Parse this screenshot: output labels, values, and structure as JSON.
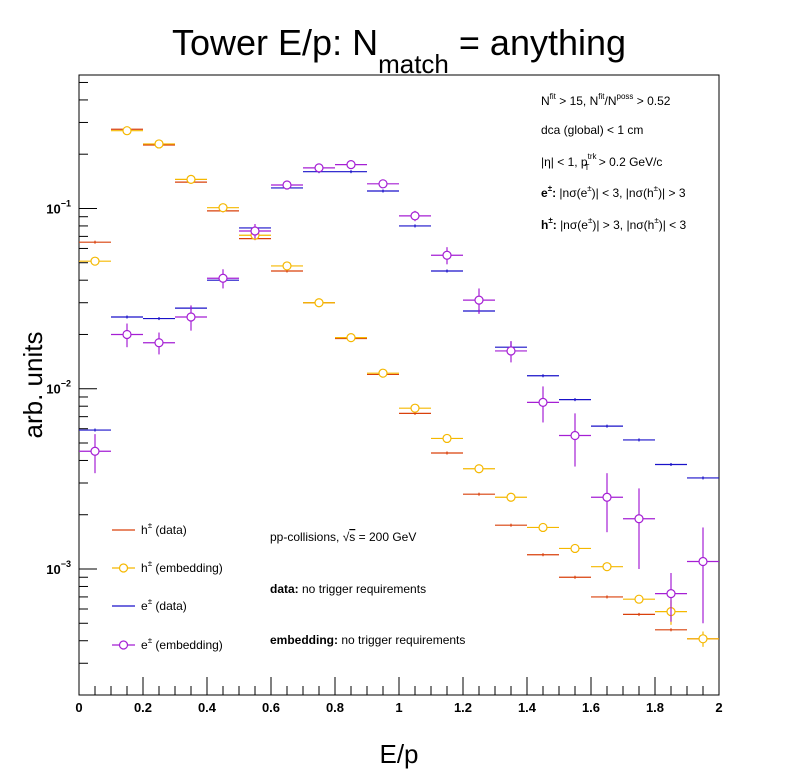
{
  "chart_data": {
    "type": "scatter",
    "title": "Tower E/p: N",
    "title_subscript": "match",
    "title_suffix": " = anything",
    "xlabel": "E/p",
    "ylabel": "arb. units",
    "xlim": [
      0,
      2
    ],
    "ylim": [
      0.0002,
      0.55
    ],
    "yscale": "log",
    "x_ticks": [
      "0",
      "0.2",
      "0.4",
      "0.6",
      "0.8",
      "1",
      "1.2",
      "1.4",
      "1.6",
      "1.8",
      "2"
    ],
    "y_ticks": [
      {
        "base": "10",
        "exp": "−1",
        "value": 0.1
      },
      {
        "base": "10",
        "exp": "−2",
        "value": 0.01
      },
      {
        "base": "10",
        "exp": "−3",
        "value": 0.001
      }
    ],
    "bin_width": 0.1,
    "series": [
      {
        "key": "h_data",
        "name": "h± (data)",
        "name_base": "h",
        "name_sup": "±",
        "name_rest": " (data)",
        "color": "#d9400b",
        "marker": "none",
        "x": [
          0.05,
          0.15,
          0.25,
          0.35,
          0.45,
          0.55,
          0.65,
          0.75,
          0.85,
          0.95,
          1.05,
          1.15,
          1.25,
          1.35,
          1.45,
          1.55,
          1.65,
          1.75,
          1.85,
          1.95
        ],
        "y": [
          0.065,
          0.275,
          0.225,
          0.14,
          0.097,
          0.068,
          0.045,
          0.03,
          0.019,
          0.012,
          0.0073,
          0.0044,
          0.0026,
          0.00175,
          0.0012,
          0.0009,
          0.0007,
          0.00056,
          0.00046,
          0.00041
        ],
        "err": [
          0,
          0,
          0,
          0,
          0,
          0,
          0,
          0,
          0,
          0,
          0,
          0,
          0,
          0,
          0,
          0,
          0,
          0,
          0,
          0
        ]
      },
      {
        "key": "h_emb",
        "name": "h± (embedding)",
        "name_base": "h",
        "name_sup": "±",
        "name_rest": " (embedding)",
        "color": "#f5b800",
        "marker": "circle",
        "x": [
          0.05,
          0.15,
          0.25,
          0.35,
          0.45,
          0.55,
          0.65,
          0.75,
          0.85,
          0.95,
          1.05,
          1.15,
          1.25,
          1.35,
          1.45,
          1.55,
          1.65,
          1.75,
          1.85,
          1.95
        ],
        "y": [
          0.051,
          0.27,
          0.228,
          0.145,
          0.101,
          0.071,
          0.048,
          0.03,
          0.0192,
          0.0122,
          0.0078,
          0.0053,
          0.0036,
          0.0025,
          0.0017,
          0.0013,
          0.00103,
          0.00068,
          0.00058,
          0.00041
        ],
        "err": [
          0,
          0,
          0,
          0,
          0,
          0,
          0,
          0,
          0,
          0,
          0,
          0,
          0,
          0,
          0,
          0,
          0,
          0,
          9e-05,
          4e-05
        ]
      },
      {
        "key": "e_data",
        "name": "e± (data)",
        "name_base": "e",
        "name_sup": "±",
        "name_rest": " (data)",
        "color": "#1a12c9",
        "marker": "none",
        "x": [
          0.05,
          0.15,
          0.25,
          0.35,
          0.45,
          0.55,
          0.65,
          0.75,
          0.85,
          0.95,
          1.05,
          1.15,
          1.25,
          1.35,
          1.45,
          1.55,
          1.65,
          1.75,
          1.85,
          1.95
        ],
        "y": [
          0.0059,
          0.025,
          0.0245,
          0.028,
          0.04,
          0.078,
          0.13,
          0.16,
          0.16,
          0.125,
          0.08,
          0.045,
          0.027,
          0.017,
          0.0118,
          0.0087,
          0.0062,
          0.0052,
          0.0038,
          0.0032
        ],
        "err": [
          0,
          0,
          0,
          0,
          0,
          0,
          0,
          0,
          0,
          0,
          0,
          0,
          0,
          0.0012,
          0,
          0,
          0,
          0,
          0,
          0
        ]
      },
      {
        "key": "e_emb",
        "name": "e± (embedding)",
        "name_base": "e",
        "name_sup": "±",
        "name_rest": " (embedding)",
        "color": "#a51fd4",
        "marker": "circle",
        "x": [
          0.05,
          0.15,
          0.25,
          0.35,
          0.45,
          0.55,
          0.65,
          0.75,
          0.85,
          0.95,
          1.05,
          1.15,
          1.25,
          1.35,
          1.45,
          1.55,
          1.65,
          1.75,
          1.85,
          1.95
        ],
        "y": [
          0.0045,
          0.02,
          0.018,
          0.025,
          0.041,
          0.075,
          0.135,
          0.168,
          0.175,
          0.137,
          0.091,
          0.055,
          0.031,
          0.0162,
          0.0084,
          0.0055,
          0.0025,
          0.0019,
          0.00073,
          0.0011
        ],
        "err": [
          0.0011,
          0.003,
          0.0025,
          0.004,
          0.005,
          0.007,
          0.006,
          0.007,
          0.007,
          0.007,
          0.006,
          0.006,
          0.005,
          0.0022,
          0.0019,
          0.0018,
          0.0009,
          0.0009,
          0.00022,
          0.0006
        ]
      }
    ]
  },
  "info_lines": {
    "line1": "N^fit > 15, N^fit/N^poss > 0.52",
    "line2": "dca (global) < 1 cm",
    "line3": "|η| < 1, p_T^trk > 0.2 GeV/c",
    "line4": "e±: |nσ(e±)| < 3, |nσ(h±)| > 3",
    "line5": "h±: |nσ(e±)| > 3, |nσ(h±)| < 3"
  },
  "notes": {
    "collisions": "pp-collisions, √s = 200 GeV",
    "data_label": "data:",
    "data_text": " no trigger requirements",
    "embedding_label": "embedding:",
    "embedding_text": " no trigger requirements"
  }
}
